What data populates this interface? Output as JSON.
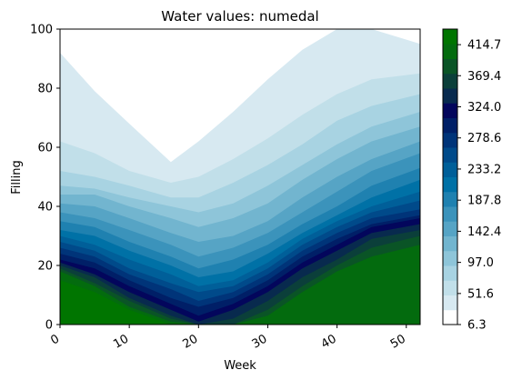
{
  "chart_data": {
    "type": "heatmap",
    "title": "Water values: numedal",
    "xlabel": "Week",
    "ylabel": "Filling",
    "xlim": [
      0,
      52
    ],
    "ylim": [
      0,
      100
    ],
    "x_ticks": [
      "0",
      "10",
      "20",
      "30",
      "40",
      "50"
    ],
    "y_ticks": [
      "0",
      "20",
      "40",
      "60",
      "80",
      "100"
    ],
    "colorbar": {
      "range": [
        6.3,
        437.4
      ],
      "levels": 19,
      "ticks": [
        "6.3",
        "51.6",
        "97.0",
        "142.4",
        "187.8",
        "233.2",
        "278.6",
        "324.0",
        "369.4",
        "414.7"
      ],
      "colormap": [
        "#ffffff",
        "#d7e9f1",
        "#c1dfe9",
        "#a8d3e2",
        "#8ec5d9",
        "#72b5cf",
        "#56a4c5",
        "#3b93bb",
        "#1f81b0",
        "#0071a6",
        "#005f99",
        "#004a8a",
        "#003479",
        "#001f67",
        "#03065c",
        "#082a4e",
        "#0b3f3a",
        "#0a5426",
        "#036b0e",
        "#007500"
      ]
    },
    "contours_filling_by_week": {
      "weeks": [
        0,
        5,
        10,
        16,
        20,
        25,
        30,
        35,
        40,
        45,
        52
      ],
      "boundaries": [
        [
          15,
          11,
          5,
          0,
          0,
          0,
          0,
          0,
          0,
          0,
          0
        ],
        [
          18,
          13,
          6,
          1,
          0,
          0,
          3,
          11,
          18,
          23,
          27
        ],
        [
          19,
          14,
          8,
          2,
          0,
          0,
          5,
          13,
          20,
          26,
          30
        ],
        [
          20,
          16,
          9,
          3,
          0,
          2,
          8,
          16,
          22,
          29,
          32
        ],
        [
          21,
          17,
          11,
          5,
          1,
          5,
          11,
          19,
          25,
          31,
          34
        ],
        [
          22,
          19,
          13,
          7,
          3,
          7,
          13,
          21,
          27,
          33,
          36
        ],
        [
          24,
          21,
          15,
          9,
          6,
          9,
          15,
          23,
          29,
          34,
          37
        ],
        [
          26,
          23,
          17,
          12,
          8,
          11,
          17,
          25,
          31,
          36,
          39
        ],
        [
          28,
          25,
          19,
          14,
          11,
          13,
          19,
          27,
          33,
          38,
          42
        ],
        [
          30,
          27,
          22,
          17,
          13,
          15,
          21,
          29,
          35,
          40,
          45
        ],
        [
          32,
          30,
          25,
          20,
          16,
          18,
          24,
          31,
          37,
          43,
          49
        ],
        [
          35,
          33,
          28,
          23,
          19,
          22,
          27,
          34,
          40,
          47,
          53
        ],
        [
          38,
          36,
          32,
          27,
          23,
          26,
          31,
          38,
          45,
          52,
          58
        ],
        [
          41,
          40,
          36,
          31,
          28,
          30,
          35,
          43,
          50,
          56,
          62
        ],
        [
          44,
          44,
          40,
          36,
          33,
          36,
          41,
          49,
          56,
          62,
          67
        ],
        [
          47,
          46,
          43,
          40,
          38,
          41,
          47,
          54,
          61,
          67,
          72
        ],
        [
          52,
          50,
          47,
          43,
          43,
          48,
          54,
          61,
          69,
          74,
          78
        ],
        [
          62,
          58,
          52,
          48,
          50,
          56,
          63,
          71,
          78,
          83,
          85
        ],
        [
          92,
          79,
          68,
          55,
          62,
          72,
          83,
          93,
          100,
          100,
          95
        ]
      ]
    }
  }
}
